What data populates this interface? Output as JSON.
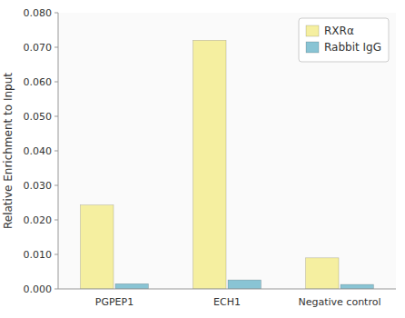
{
  "chart_data": {
    "type": "bar",
    "categories": [
      "PGPEP1",
      "ECH1",
      "Negative control"
    ],
    "series": [
      {
        "name": "RXRα",
        "color": "#F5EFA0",
        "values": [
          0.0243,
          0.072,
          0.009
        ]
      },
      {
        "name": "Rabbit IgG",
        "color": "#89C4D4",
        "values": [
          0.0015,
          0.0026,
          0.0013
        ]
      }
    ],
    "ylabel": "Relative Enrichment to Input",
    "ylim": [
      0,
      0.08
    ],
    "yticks": [
      {
        "value": 0,
        "label": "0.000"
      },
      {
        "value": 0.01,
        "label": "0.010"
      },
      {
        "value": 0.02,
        "label": "0.020"
      },
      {
        "value": 0.03,
        "label": "0.030"
      },
      {
        "value": 0.04,
        "label": "0.040"
      },
      {
        "value": 0.05,
        "label": "0.050"
      },
      {
        "value": 0.06,
        "label": "0.060"
      },
      {
        "value": 0.07,
        "label": "0.070"
      },
      {
        "value": 0.08,
        "label": "0.080"
      }
    ],
    "grid": false,
    "legend": "upper right"
  }
}
